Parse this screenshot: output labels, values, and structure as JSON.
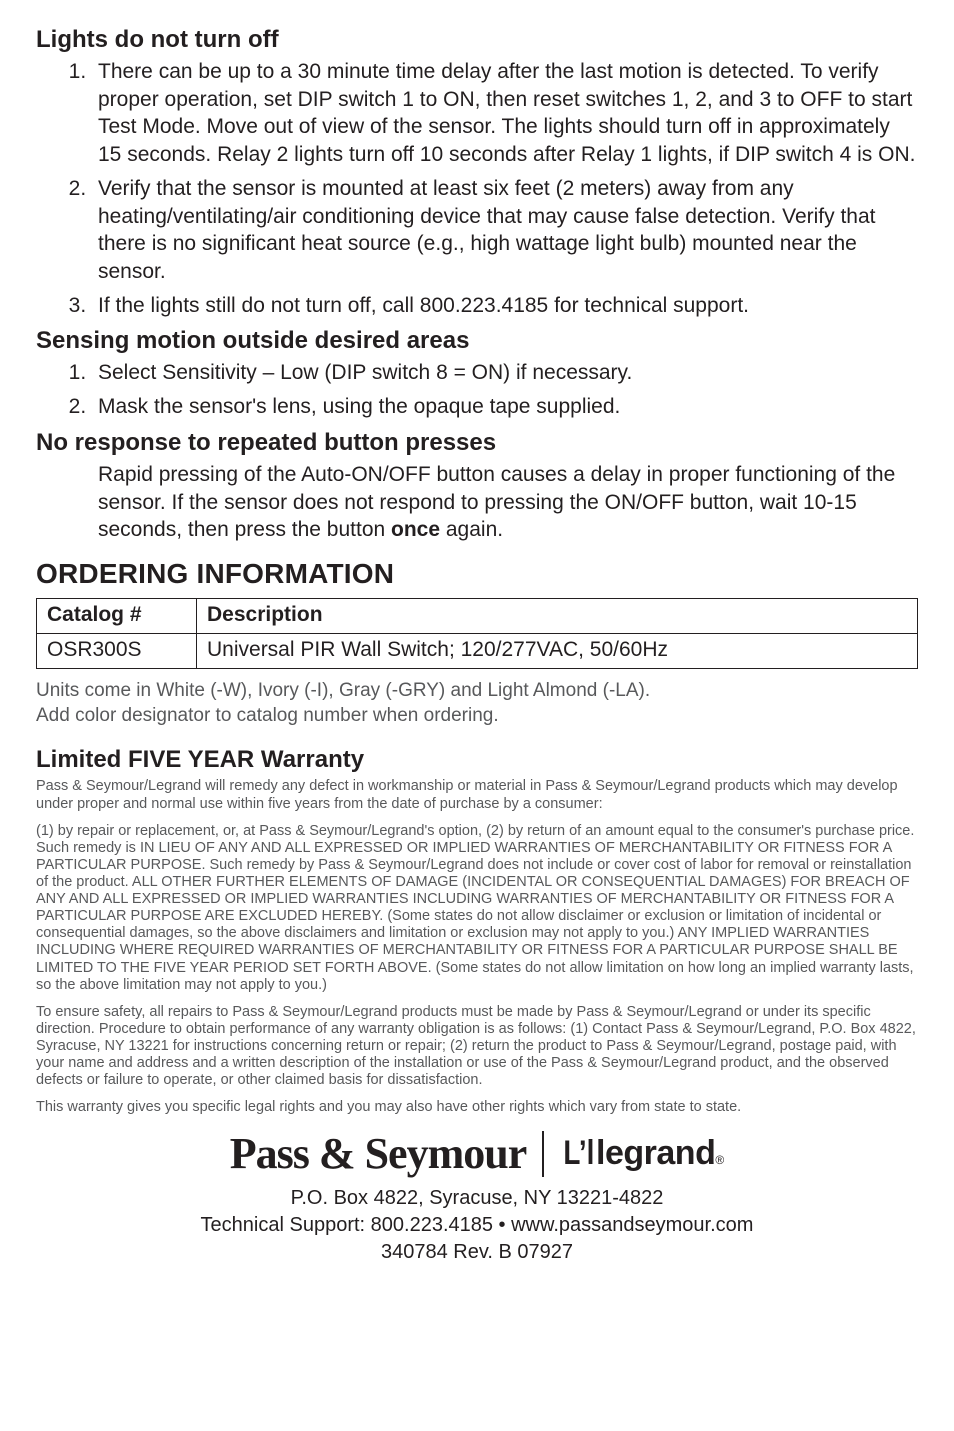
{
  "sections": {
    "lights_off": {
      "title": "Lights do not turn off",
      "items": [
        "There can be up to a 30 minute time delay after the last motion is detected. To verify proper operation, set DIP switch 1 to ON, then reset switches 1, 2, and 3 to OFF to start Test Mode. Move out of view of the sensor. The lights should turn off in approximately 15 seconds. Relay 2 lights turn off 10 seconds after Relay 1 lights, if DIP switch 4 is ON.",
        "Verify that the sensor is mounted at least six feet (2 meters) away from any heating/ventilating/air conditioning device that may cause false detection. Verify that there is no significant heat source (e.g., high wattage light bulb) mounted near the sensor.",
        "If the lights still do not turn off, call 800.223.4185 for technical support."
      ]
    },
    "sensing": {
      "title": "Sensing motion outside desired areas",
      "items": [
        "Select Sensitivity – Low (DIP switch 8 = ON) if necessary.",
        "Mask the sensor's lens, using the opaque tape supplied."
      ]
    },
    "no_response": {
      "title": "No response to repeated button presses",
      "body_pre": "Rapid pressing of the Auto-ON/OFF button causes a delay in proper functioning of the sensor. If the sensor does not respond to pressing the ON/OFF button, wait 10-15 seconds, then press the button ",
      "body_bold": "once",
      "body_post": " again."
    }
  },
  "ordering": {
    "title": "ORDERING INFORMATION",
    "columns": [
      "Catalog #",
      "Description"
    ],
    "rows": [
      [
        "OSR300S",
        "Universal PIR Wall Switch; 120/277VAC, 50/60Hz"
      ]
    ],
    "note_line1": "Units come in White (-W), Ivory (-I), Gray (-GRY) and Light Almond (-LA).",
    "note_line2": "Add color designator to catalog number when ordering."
  },
  "warranty": {
    "title": "Limited FIVE YEAR Warranty",
    "p1": "Pass & Seymour/Legrand will remedy any defect in workmanship or material in Pass & Seymour/Legrand products which may develop under proper and normal use within five years from the date of purchase by a consumer:",
    "p2": "(1) by repair or replacement, or, at Pass & Seymour/Legrand's option, (2) by return of an amount equal to the consumer's purchase price. Such remedy is IN LIEU OF ANY AND ALL EXPRESSED OR IMPLIED WARRANTIES OF MERCHANTABILITY OR FITNESS FOR A PARTICULAR PURPOSE. Such remedy by Pass & Seymour/Legrand does not include or cover cost of labor for removal or reinstallation of the product. ALL OTHER FURTHER ELEMENTS OF DAMAGE (INCIDENTAL OR CONSEQUENTIAL DAMAGES) FOR BREACH OF ANY AND ALL EXPRESSED OR IMPLIED WARRANTIES INCLUDING WARRANTIES OF MERCHANTABILITY OR FITNESS FOR A PARTICULAR PURPOSE ARE EXCLUDED HEREBY. (Some states do not allow disclaimer or exclusion or limitation of incidental or consequential damages, so the above disclaimers and limitation or exclusion may not apply to you.) ANY IMPLIED WARRANTIES INCLUDING WHERE REQUIRED WARRANTIES OF MERCHANTABILITY OR FITNESS FOR A PARTICULAR PURPOSE SHALL BE LIMITED TO THE FIVE YEAR PERIOD SET FORTH ABOVE. (Some states do not allow limitation on how long an implied warranty lasts, so the above limitation may not apply to you.)",
    "p3": "To ensure safety, all repairs to Pass & Seymour/Legrand products must be made by Pass & Seymour/Legrand or under its specific direction. Procedure to obtain performance of any warranty obligation is as follows: (1) Contact Pass & Seymour/Legrand, P.O. Box 4822, Syracuse, NY 13221 for instructions concerning return or repair; (2) return the product to Pass & Seymour/Legrand, postage paid, with your name and address and a written description of the installation or use of the Pass & Seymour/Legrand product, and the observed defects or failure to operate, or other claimed basis for dissatisfaction.",
    "p4": "This warranty gives you specific legal rights and you may also have other rights which vary from state to state."
  },
  "logos": {
    "ps": "Pass & Seymour",
    "legrand_l1": "L’l",
    "legrand_rest": "legrand",
    "reg": "®"
  },
  "footer": {
    "line1": "P.O. Box 4822, Syracuse, NY 13221-4822",
    "line2": "Technical Support: 800.223.4185 • www.passandseymour.com",
    "line3": "340784 Rev. B    07927"
  },
  "colors": {
    "text": "#231f20",
    "fine": "#58595b",
    "bg": "#ffffff",
    "border": "#231f20"
  }
}
